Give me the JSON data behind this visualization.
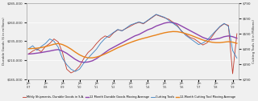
{
  "ylabel_left": "Durable Goods ($ in millions)",
  "ylabel_right": "Cutting Tools ($ in Millions)",
  "ylim_left": [
    185000,
    285000
  ],
  "ylim_right": [
    290,
    790
  ],
  "left_yticks": [
    185000,
    210000,
    235000,
    260000,
    285000
  ],
  "right_yticks": [
    290,
    390,
    490,
    590,
    690,
    790
  ],
  "x_labels": [
    "Jan\n'07",
    "",
    "",
    "",
    "Jan\n'08",
    "",
    "",
    "",
    "Jan\n'09",
    "",
    "",
    "",
    "Jan\n'10",
    "",
    "",
    "",
    "Jan\n'11",
    "",
    "",
    "",
    "Jan\n'12",
    "",
    "",
    "",
    "Jan\n'13",
    "",
    "",
    "",
    "Jan\n'14",
    "",
    "",
    "",
    "Jan\n'15",
    "",
    "",
    "",
    "Jan\n'16",
    "",
    "",
    "",
    "Jan\n'17",
    "",
    "",
    "",
    "Jan\n'18",
    "",
    "",
    "",
    "Jan\n'19",
    ""
  ],
  "durable_goods": [
    218000,
    222000,
    225000,
    221000,
    228000,
    232000,
    238000,
    234000,
    220000,
    198000,
    193000,
    196000,
    202000,
    212000,
    220000,
    225000,
    232000,
    238000,
    242000,
    240000,
    246000,
    250000,
    249000,
    252000,
    255000,
    258000,
    260000,
    258000,
    262000,
    266000,
    270000,
    268000,
    266000,
    264000,
    260000,
    256000,
    248000,
    244000,
    240000,
    238000,
    234000,
    230000,
    233000,
    240000,
    248000,
    254000,
    258000,
    256000,
    192000,
    245000
  ],
  "dg_moving_avg": [
    218000,
    218500,
    219200,
    220000,
    221000,
    222000,
    223200,
    224000,
    222000,
    219000,
    215000,
    211000,
    208000,
    207000,
    207500,
    209000,
    212000,
    216000,
    220000,
    224000,
    227000,
    230000,
    233000,
    236000,
    239000,
    242000,
    244000,
    247000,
    250000,
    252000,
    255000,
    257000,
    259000,
    260000,
    259500,
    258000,
    255000,
    252000,
    249000,
    246000,
    243000,
    240000,
    238000,
    237000,
    238000,
    239000,
    241000,
    242000,
    241000,
    239000
  ],
  "cutting_tools": [
    490,
    510,
    480,
    505,
    525,
    555,
    540,
    500,
    425,
    385,
    355,
    340,
    355,
    395,
    428,
    458,
    488,
    528,
    558,
    578,
    598,
    618,
    608,
    628,
    648,
    658,
    668,
    658,
    678,
    698,
    718,
    708,
    698,
    678,
    658,
    638,
    608,
    578,
    558,
    538,
    518,
    528,
    548,
    578,
    608,
    638,
    658,
    638,
    478,
    428
  ],
  "ct_moving_avg": [
    490,
    492,
    494,
    498,
    504,
    512,
    520,
    525,
    518,
    505,
    488,
    468,
    450,
    437,
    430,
    430,
    435,
    444,
    456,
    469,
    483,
    497,
    509,
    521,
    532,
    542,
    551,
    559,
    566,
    574,
    581,
    589,
    596,
    601,
    604,
    603,
    598,
    590,
    581,
    570,
    559,
    548,
    540,
    534,
    531,
    531,
    534,
    537,
    534,
    526
  ],
  "colors": {
    "durable_goods": "#c0392b",
    "dg_moving_avg": "#8e44ad",
    "cutting_tools": "#3a7ebf",
    "ct_moving_avg": "#e8821a"
  },
  "legend_labels": [
    "Mthly Shipments, Durable Goods in S.A.",
    "12 Month Durable Goods Moving Average",
    "Cutting Tools",
    "12-Month Cutting Tool Moving Average"
  ],
  "background_color": "#f0f0f0",
  "grid_color": "#ffffff"
}
